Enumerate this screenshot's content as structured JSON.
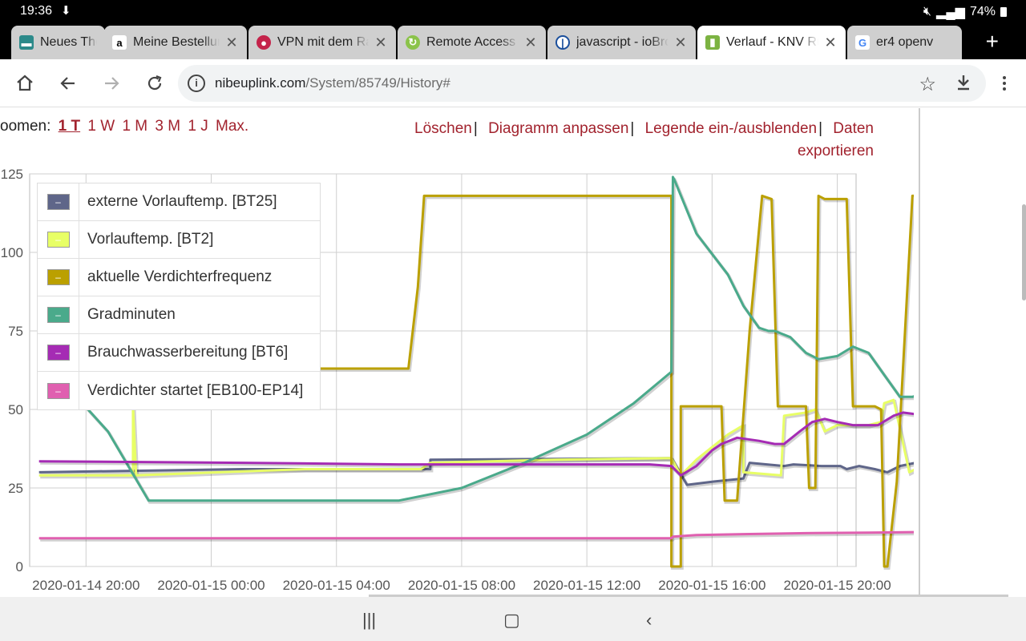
{
  "status": {
    "time": "19:36",
    "battery": "74%"
  },
  "tabs": [
    {
      "title": "Neues The",
      "favicon": "news-icon",
      "active": false
    },
    {
      "title": "Meine Bestellung",
      "favicon": "amazon-icon",
      "active": false
    },
    {
      "title": "VPN mit dem Ra",
      "favicon": "raspberry-icon",
      "active": false
    },
    {
      "title": "Remote Access",
      "favicon": "refresh-icon",
      "active": false
    },
    {
      "title": "javascript - ioBro",
      "favicon": "iobroker-icon",
      "active": false
    },
    {
      "title": "Verlauf - KNV Rü",
      "favicon": "knv-icon",
      "active": true
    },
    {
      "title": "er4 openv",
      "favicon": "google-icon",
      "active": false
    }
  ],
  "omnibox": {
    "domain": "nibeuplink.com",
    "path": "/System/85749/History#"
  },
  "zoom": {
    "label": "oomen:",
    "options": [
      "1 T",
      "1 W",
      "1 M",
      "3 M",
      "1 J",
      "Max."
    ],
    "selected": "1 T"
  },
  "actions": {
    "clear": "Löschen",
    "adjust": "Diagramm anpassen",
    "legend_toggle": "Legende ein-/ausblenden",
    "export_line1": "Daten",
    "export_line2": "exportieren"
  },
  "chart_data": {
    "type": "line",
    "title": "",
    "xlabel": "",
    "ylabel": "",
    "ylim": [
      0,
      125
    ],
    "yticks": [
      "0",
      "25",
      "50",
      "75",
      "100",
      "125"
    ],
    "xticks": [
      "2020-01-14 20:00",
      "2020-01-15 00:00",
      "2020-01-15 04:00",
      "2020-01-15 08:00",
      "2020-01-15 12:00",
      "2020-01-15 16:00",
      "2020-01-15 20:00"
    ],
    "xlim_hours": [
      -1.8,
      24.6
    ],
    "grid": true,
    "legend_position": "top-left",
    "series": [
      {
        "name": "externe Vorlauftemp. [BT25]",
        "color": "#5f6689",
        "points": [
          [
            -1.5,
            30
          ],
          [
            5,
            31
          ],
          [
            11,
            31
          ],
          [
            11,
            34
          ],
          [
            18.7,
            34.5
          ],
          [
            19.2,
            26
          ],
          [
            20,
            27
          ],
          [
            21,
            28
          ],
          [
            21.2,
            33
          ],
          [
            22.3,
            32
          ],
          [
            22.6,
            32.5
          ],
          [
            23.5,
            32
          ],
          [
            24.1,
            32
          ],
          [
            24.3,
            31
          ],
          [
            24.7,
            32
          ],
          [
            25.2,
            31
          ],
          [
            25.6,
            30
          ],
          [
            26,
            32
          ],
          [
            26.5,
            33
          ],
          [
            27,
            33
          ]
        ]
      },
      {
        "name": "Vorlauftemp. [BT2]",
        "color": "#e8ff66",
        "points": [
          [
            -1.5,
            29
          ],
          [
            1.5,
            29
          ],
          [
            1.5,
            51
          ],
          [
            1.6,
            29
          ],
          [
            7,
            31
          ],
          [
            10.7,
            31
          ],
          [
            11,
            33
          ],
          [
            15,
            34
          ],
          [
            18.7,
            34.5
          ],
          [
            19,
            29
          ],
          [
            19.5,
            34
          ],
          [
            20.5,
            42
          ],
          [
            21,
            45
          ],
          [
            21,
            30
          ],
          [
            22.2,
            29
          ],
          [
            22.3,
            48
          ],
          [
            23,
            49
          ],
          [
            23.3,
            50
          ],
          [
            23.6,
            43
          ],
          [
            24,
            45
          ],
          [
            25,
            45
          ],
          [
            25.4,
            46
          ],
          [
            25.5,
            52
          ],
          [
            25.8,
            53
          ],
          [
            26.3,
            30
          ],
          [
            26.7,
            32
          ],
          [
            27,
            33
          ]
        ]
      },
      {
        "name": "aktuelle Verdichterfrequenz",
        "color": "#bba000",
        "points": [
          [
            -1.5,
            63
          ],
          [
            10.3,
            63
          ],
          [
            10.6,
            89
          ],
          [
            10.8,
            118
          ],
          [
            18.7,
            118
          ],
          [
            18.7,
            0
          ],
          [
            19,
            0
          ],
          [
            19,
            51
          ],
          [
            20,
            51
          ],
          [
            20.3,
            51
          ],
          [
            20.4,
            21
          ],
          [
            20.8,
            21
          ],
          [
            21.2,
            75
          ],
          [
            21.6,
            118
          ],
          [
            21.9,
            117
          ],
          [
            22.1,
            51
          ],
          [
            22.3,
            51
          ],
          [
            22.6,
            51
          ],
          [
            23,
            51
          ],
          [
            23.1,
            25
          ],
          [
            23.3,
            25
          ],
          [
            23.4,
            118
          ],
          [
            23.6,
            117
          ],
          [
            24,
            117
          ],
          [
            24.3,
            117
          ],
          [
            24.5,
            51
          ],
          [
            24.9,
            51
          ],
          [
            25.2,
            51
          ],
          [
            25.4,
            50
          ],
          [
            25.5,
            0
          ],
          [
            25.6,
            0
          ],
          [
            25.9,
            27
          ],
          [
            26.4,
            118
          ],
          [
            27,
            118
          ]
        ]
      },
      {
        "name": "Gradminuten",
        "color": "#4aaa8b",
        "points": [
          [
            -1.5,
            54
          ],
          [
            -0.3,
            54
          ],
          [
            0.7,
            43
          ],
          [
            2,
            21
          ],
          [
            9,
            21
          ],
          [
            10,
            21
          ],
          [
            12,
            25
          ],
          [
            14,
            33
          ],
          [
            16,
            42
          ],
          [
            17.5,
            52
          ],
          [
            18.7,
            62
          ],
          [
            18.75,
            124
          ],
          [
            18.8,
            123
          ],
          [
            19.5,
            106
          ],
          [
            20.5,
            93
          ],
          [
            21,
            83
          ],
          [
            21.5,
            76
          ],
          [
            21.8,
            75
          ],
          [
            22,
            75
          ],
          [
            22.5,
            73
          ],
          [
            23,
            68
          ],
          [
            23.4,
            66
          ],
          [
            24,
            67
          ],
          [
            24.5,
            70
          ],
          [
            25,
            68
          ],
          [
            25.5,
            61
          ],
          [
            26,
            54
          ],
          [
            26.4,
            54
          ],
          [
            27,
            56
          ],
          [
            27.5,
            60
          ]
        ]
      },
      {
        "name": "Brauchwasserbereitung [BT6]",
        "color": "#a52bb4",
        "points": [
          [
            -1.5,
            33.5
          ],
          [
            5,
            33
          ],
          [
            10,
            32.5
          ],
          [
            15,
            32.5
          ],
          [
            18,
            32.5
          ],
          [
            18.7,
            32
          ],
          [
            19,
            29
          ],
          [
            19.5,
            32
          ],
          [
            20,
            37
          ],
          [
            20.3,
            39
          ],
          [
            20.8,
            41
          ],
          [
            21.5,
            40
          ],
          [
            22,
            39
          ],
          [
            22.3,
            39
          ],
          [
            22.8,
            43
          ],
          [
            23.2,
            46
          ],
          [
            23.6,
            47
          ],
          [
            24,
            46
          ],
          [
            24.5,
            45
          ],
          [
            25,
            45
          ],
          [
            25.3,
            45
          ],
          [
            25.8,
            48
          ],
          [
            26.1,
            49
          ],
          [
            26.5,
            48.5
          ],
          [
            27,
            48
          ]
        ]
      },
      {
        "name": "Verdichter startet [EB100-EP14]",
        "color": "#e060b0",
        "points": [
          [
            -1.5,
            9
          ],
          [
            18.7,
            9
          ],
          [
            18.75,
            9.5
          ],
          [
            19.5,
            10
          ],
          [
            21,
            10.3
          ],
          [
            23,
            10.6
          ],
          [
            25,
            10.8
          ],
          [
            27,
            11
          ]
        ]
      }
    ]
  }
}
